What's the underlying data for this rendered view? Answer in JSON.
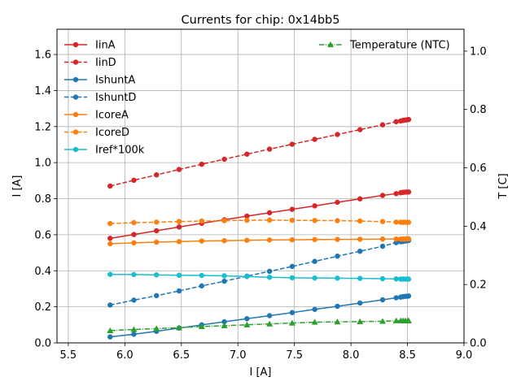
{
  "chart_data": {
    "type": "line",
    "title": "Currents for chip: 0x14bb5",
    "xlabel": "I [A]",
    "ylabel": "I [A]",
    "y2label": "T [C]",
    "xlim": [
      5.4,
      9.0
    ],
    "ylim": [
      0.0,
      1.74
    ],
    "y2lim": [
      0.0,
      1.075
    ],
    "xticks": [
      5.5,
      6.0,
      6.5,
      7.0,
      7.5,
      8.0,
      8.5,
      9.0
    ],
    "xtick_labels": [
      "5.5",
      "6.0",
      "6.5",
      "7.0",
      "7.5",
      "8.0",
      "8.5",
      "9.0"
    ],
    "yticks": [
      0.0,
      0.2,
      0.4,
      0.6,
      0.8,
      1.0,
      1.2,
      1.4,
      1.6
    ],
    "ytick_labels": [
      "0.0",
      "0.2",
      "0.4",
      "0.6",
      "0.8",
      "1.0",
      "1.2",
      "1.4",
      "1.6"
    ],
    "y2ticks": [
      0.0,
      0.2,
      0.4,
      0.6,
      0.8,
      1.0
    ],
    "y2tick_labels": [
      "0.0",
      "0.2",
      "0.4",
      "0.6",
      "0.8",
      "1.0"
    ],
    "grid": true,
    "legend_position": "upper-left",
    "legend2_position": "upper-right",
    "x": [
      5.87,
      6.08,
      6.28,
      6.48,
      6.68,
      6.88,
      7.08,
      7.28,
      7.48,
      7.68,
      7.88,
      8.08,
      8.28,
      8.4,
      8.44,
      8.46,
      8.48,
      8.5,
      8.51
    ],
    "series": [
      {
        "name": "IinA",
        "axis": "left",
        "color": "#d62728",
        "dash": "solid",
        "marker": "circle",
        "values": [
          0.58,
          0.601,
          0.622,
          0.643,
          0.663,
          0.683,
          0.703,
          0.722,
          0.741,
          0.76,
          0.78,
          0.799,
          0.818,
          0.828,
          0.833,
          0.835,
          0.836,
          0.837,
          0.837
        ]
      },
      {
        "name": "IinD",
        "axis": "left",
        "color": "#d62728",
        "dash": "dashed",
        "marker": "circle",
        "values": [
          0.87,
          0.902,
          0.932,
          0.962,
          0.991,
          1.019,
          1.047,
          1.075,
          1.102,
          1.129,
          1.156,
          1.183,
          1.21,
          1.227,
          1.231,
          1.234,
          1.236,
          1.238,
          1.239
        ]
      },
      {
        "name": "IshuntA",
        "axis": "left",
        "color": "#1f77b4",
        "dash": "solid",
        "marker": "circle",
        "values": [
          0.033,
          0.048,
          0.064,
          0.082,
          0.1,
          0.117,
          0.134,
          0.151,
          0.168,
          0.186,
          0.203,
          0.221,
          0.239,
          0.25,
          0.254,
          0.256,
          0.258,
          0.259,
          0.26
        ]
      },
      {
        "name": "IshuntD",
        "axis": "left",
        "color": "#1f77b4",
        "dash": "dashed",
        "marker": "circle",
        "values": [
          0.21,
          0.237,
          0.262,
          0.288,
          0.316,
          0.342,
          0.37,
          0.397,
          0.424,
          0.452,
          0.481,
          0.508,
          0.536,
          0.556,
          0.561,
          0.563,
          0.565,
          0.567,
          0.568
        ]
      },
      {
        "name": "IcoreA",
        "axis": "left",
        "color": "#ff7f0e",
        "dash": "solid",
        "marker": "circle",
        "values": [
          0.55,
          0.555,
          0.559,
          0.562,
          0.565,
          0.567,
          0.569,
          0.571,
          0.572,
          0.573,
          0.574,
          0.575,
          0.576,
          0.576,
          0.576,
          0.576,
          0.576,
          0.577,
          0.577
        ]
      },
      {
        "name": "IcoreD",
        "axis": "left",
        "color": "#ff7f0e",
        "dash": "dashed",
        "marker": "circle",
        "values": [
          0.662,
          0.667,
          0.67,
          0.673,
          0.676,
          0.678,
          0.68,
          0.681,
          0.68,
          0.679,
          0.678,
          0.676,
          0.673,
          0.67,
          0.669,
          0.669,
          0.669,
          0.669,
          0.669
        ]
      },
      {
        "name": "Iref*100k",
        "axis": "left",
        "color": "#17becf",
        "dash": "solid",
        "marker": "circle",
        "values": [
          0.38,
          0.379,
          0.377,
          0.375,
          0.374,
          0.372,
          0.368,
          0.364,
          0.361,
          0.36,
          0.359,
          0.358,
          0.356,
          0.355,
          0.354,
          0.354,
          0.354,
          0.354,
          0.354
        ]
      },
      {
        "name": "Temperature (NTC)",
        "axis": "right",
        "color": "#2ca02c",
        "dash": "dashdot",
        "marker": "triangle",
        "values": [
          0.042,
          0.046,
          0.049,
          0.052,
          0.056,
          0.059,
          0.062,
          0.065,
          0.068,
          0.071,
          0.072,
          0.073,
          0.074,
          0.076,
          0.076,
          0.076,
          0.076,
          0.076,
          0.076
        ]
      }
    ]
  }
}
